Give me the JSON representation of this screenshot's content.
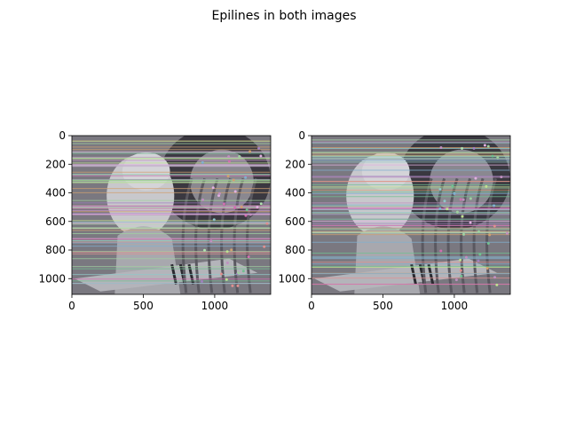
{
  "figure_title": "Epilines in both images",
  "colors": {
    "line_palette": [
      "#e0b0e0",
      "#a0d0a0",
      "#c090c0",
      "#90c8c8",
      "#d0a070",
      "#b0e0b0",
      "#a080c0",
      "#e09090",
      "#80b0d0",
      "#c0e090",
      "#d070b0",
      "#70c090"
    ],
    "photo_light": "#c8c8cc",
    "photo_dark": "#3a3840",
    "photo_mid": "#7a7880"
  },
  "chart_data": [
    {
      "type": "image",
      "name": "left-image",
      "xlim": [
        0,
        1392
      ],
      "ylim": [
        1110,
        0
      ],
      "xticks": [
        0,
        500,
        1000
      ],
      "yticks": [
        0,
        200,
        400,
        600,
        800,
        1000
      ]
    },
    {
      "type": "image",
      "name": "right-image",
      "xlim": [
        0,
        1392
      ],
      "ylim": [
        1110,
        0
      ],
      "xticks": [
        0,
        500,
        1000
      ],
      "yticks": [
        0,
        200,
        400,
        600,
        800,
        1000
      ]
    }
  ]
}
